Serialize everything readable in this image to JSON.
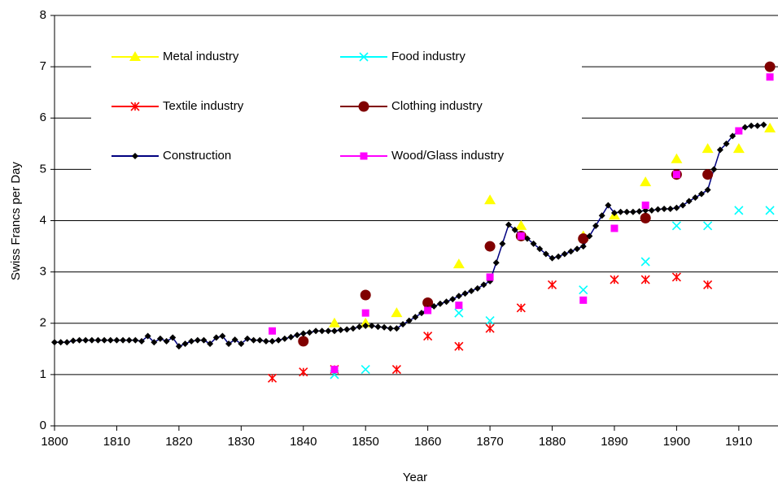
{
  "chart_data": {
    "type": "line",
    "xlabel": "Year",
    "ylabel": "Swiss Francs per Day",
    "xlim": [
      1800,
      1916.3
    ],
    "ylim": [
      0,
      8
    ],
    "xticks": [
      1800,
      1810,
      1820,
      1830,
      1840,
      1850,
      1860,
      1870,
      1880,
      1890,
      1900,
      1910
    ],
    "yticks": [
      0,
      1,
      2,
      3,
      4,
      5,
      6,
      7,
      8
    ],
    "grid": true,
    "series": [
      {
        "name": "Metal industry",
        "color": "#ffff00",
        "marker": "triangle",
        "line": false,
        "x": [
          1845,
          1850,
          1855,
          1865,
          1870,
          1875,
          1885,
          1890,
          1895,
          1900,
          1905,
          1910,
          1915
        ],
        "values": [
          2.0,
          2.0,
          2.2,
          3.15,
          4.4,
          3.9,
          3.7,
          4.1,
          4.75,
          5.2,
          5.4,
          5.4,
          5.8
        ]
      },
      {
        "name": "Food industry",
        "color": "#00ffff",
        "marker": "x",
        "line": false,
        "x": [
          1845,
          1850,
          1865,
          1870,
          1885,
          1895,
          1900,
          1905,
          1910,
          1915
        ],
        "values": [
          1.0,
          1.1,
          2.2,
          2.05,
          2.65,
          3.2,
          3.9,
          3.9,
          4.2,
          4.2
        ]
      },
      {
        "name": "Textile industry",
        "color": "#ff0000",
        "marker": "asterisk",
        "line": false,
        "x": [
          1835,
          1840,
          1845,
          1855,
          1860,
          1865,
          1870,
          1875,
          1880,
          1890,
          1895,
          1900,
          1905
        ],
        "values": [
          0.93,
          1.05,
          1.1,
          1.1,
          1.75,
          1.55,
          1.9,
          2.3,
          2.75,
          2.85,
          2.85,
          2.9,
          2.75
        ]
      },
      {
        "name": "Clothing industry",
        "color": "#800000",
        "marker": "circle",
        "line": false,
        "x": [
          1840,
          1850,
          1860,
          1870,
          1875,
          1885,
          1895,
          1900,
          1905,
          1915
        ],
        "values": [
          1.65,
          2.55,
          2.4,
          3.5,
          3.7,
          3.65,
          4.05,
          4.9,
          4.9,
          7.0
        ]
      },
      {
        "name": "Construction",
        "color": "#000080",
        "marker_color": "#000000",
        "marker": "diamond",
        "line": true,
        "x": [
          1800,
          1801,
          1802,
          1803,
          1804,
          1805,
          1806,
          1807,
          1808,
          1809,
          1810,
          1811,
          1812,
          1813,
          1814,
          1815,
          1816,
          1817,
          1818,
          1819,
          1820,
          1821,
          1822,
          1823,
          1824,
          1825,
          1826,
          1827,
          1828,
          1829,
          1830,
          1831,
          1832,
          1833,
          1834,
          1835,
          1836,
          1837,
          1838,
          1839,
          1840,
          1841,
          1842,
          1843,
          1844,
          1845,
          1846,
          1847,
          1848,
          1849,
          1850,
          1851,
          1852,
          1853,
          1854,
          1855,
          1856,
          1857,
          1858,
          1859,
          1860,
          1861,
          1862,
          1863,
          1864,
          1865,
          1866,
          1867,
          1868,
          1869,
          1870,
          1871,
          1872,
          1873,
          1874,
          1875,
          1876,
          1877,
          1878,
          1879,
          1880,
          1881,
          1882,
          1883,
          1884,
          1885,
          1886,
          1887,
          1888,
          1889,
          1890,
          1891,
          1892,
          1893,
          1894,
          1895,
          1896,
          1897,
          1898,
          1899,
          1900,
          1901,
          1902,
          1903,
          1904,
          1905,
          1906,
          1907,
          1908,
          1909,
          1910,
          1911,
          1912,
          1913,
          1914
        ],
        "values": [
          1.63,
          1.63,
          1.63,
          1.66,
          1.67,
          1.67,
          1.67,
          1.67,
          1.67,
          1.67,
          1.67,
          1.67,
          1.67,
          1.67,
          1.65,
          1.75,
          1.63,
          1.7,
          1.65,
          1.72,
          1.55,
          1.6,
          1.65,
          1.67,
          1.67,
          1.6,
          1.72,
          1.75,
          1.6,
          1.68,
          1.6,
          1.7,
          1.67,
          1.67,
          1.65,
          1.65,
          1.67,
          1.7,
          1.73,
          1.77,
          1.8,
          1.82,
          1.85,
          1.85,
          1.85,
          1.85,
          1.87,
          1.88,
          1.9,
          1.93,
          1.95,
          1.95,
          1.93,
          1.92,
          1.9,
          1.9,
          1.98,
          2.05,
          2.12,
          2.2,
          2.28,
          2.33,
          2.38,
          2.42,
          2.47,
          2.53,
          2.58,
          2.63,
          2.68,
          2.75,
          2.82,
          3.18,
          3.55,
          3.92,
          3.82,
          3.72,
          3.65,
          3.55,
          3.45,
          3.35,
          3.27,
          3.3,
          3.35,
          3.4,
          3.45,
          3.5,
          3.7,
          3.9,
          4.1,
          4.3,
          4.15,
          4.17,
          4.17,
          4.17,
          4.18,
          4.2,
          4.2,
          4.22,
          4.23,
          4.23,
          4.25,
          4.3,
          4.38,
          4.45,
          4.52,
          4.6,
          5.0,
          5.38,
          5.5,
          5.65,
          5.75,
          5.82,
          5.85,
          5.85,
          5.87
        ]
      },
      {
        "name": "Wood/Glass industry",
        "color": "#ff00ff",
        "marker": "square",
        "line": false,
        "x": [
          1835,
          1845,
          1850,
          1860,
          1865,
          1870,
          1875,
          1885,
          1890,
          1895,
          1900,
          1910,
          1915
        ],
        "values": [
          1.85,
          1.1,
          2.2,
          2.25,
          2.35,
          2.9,
          3.7,
          2.45,
          3.85,
          4.3,
          4.9,
          5.75,
          6.8
        ]
      }
    ]
  }
}
